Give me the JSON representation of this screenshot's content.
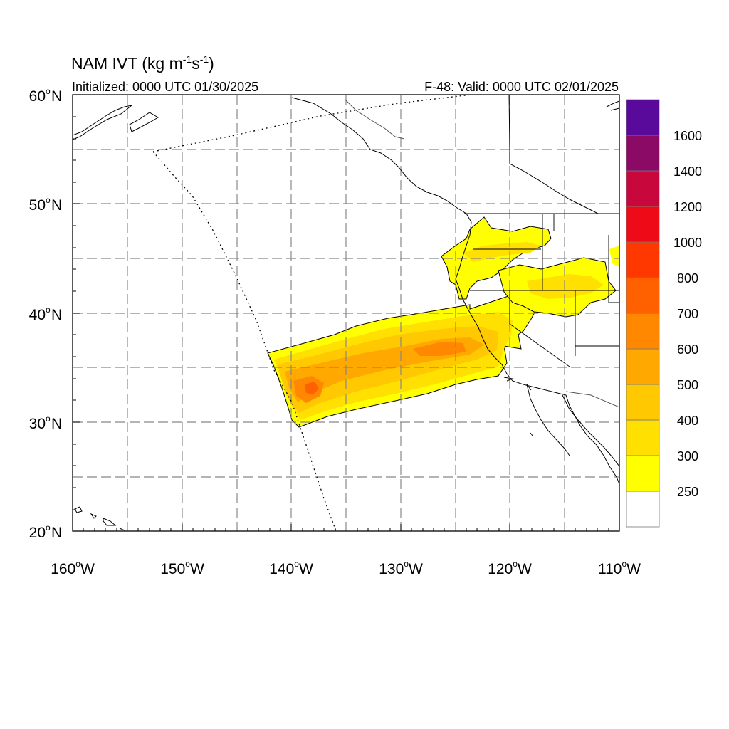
{
  "title": "NAM IVT (kg m",
  "title_sup1": "-1",
  "title_mid": "s",
  "title_sup2": "-1",
  "title_end": ")",
  "subtitle_left": "Initialized: 0000 UTC 01/30/2025",
  "subtitle_right": "F-48: Valid: 0000 UTC 02/01/2025",
  "lat_labels": [
    {
      "deg": "60",
      "unit": "o",
      "hem": "N"
    },
    {
      "deg": "50",
      "unit": "o",
      "hem": "N"
    },
    {
      "deg": "40",
      "unit": "o",
      "hem": "N"
    },
    {
      "deg": "30",
      "unit": "o",
      "hem": "N"
    },
    {
      "deg": "20",
      "unit": "o",
      "hem": "N"
    }
  ],
  "lon_labels": [
    {
      "deg": "160",
      "unit": "o",
      "hem": "W"
    },
    {
      "deg": "150",
      "unit": "o",
      "hem": "W"
    },
    {
      "deg": "140",
      "unit": "o",
      "hem": "W"
    },
    {
      "deg": "130",
      "unit": "o",
      "hem": "W"
    },
    {
      "deg": "120",
      "unit": "o",
      "hem": "W"
    },
    {
      "deg": "110",
      "unit": "o",
      "hem": "W"
    }
  ],
  "colorbar": {
    "labels": [
      "250",
      "300",
      "400",
      "500",
      "600",
      "700",
      "800",
      "1000",
      "1200",
      "1400",
      "1600"
    ],
    "colors": [
      "#ffffff",
      "#ffff00",
      "#ffe000",
      "#ffc800",
      "#ffa800",
      "#ff8800",
      "#ff6000",
      "#ff3800",
      "#ee0a16",
      "#c8083c",
      "#8a0a66",
      "#5a0a9a"
    ]
  },
  "map": {
    "lon_range": [
      -160,
      -110
    ],
    "lat_range": [
      20,
      60
    ],
    "gridlines": true
  }
}
